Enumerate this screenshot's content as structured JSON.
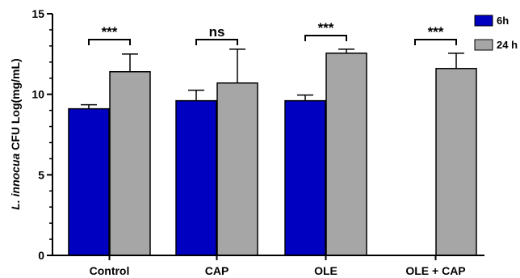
{
  "chart_data": {
    "type": "bar",
    "ylabel_italic": "L. innocua",
    "ylabel_rest": " CFU Log(mg/mL)",
    "ylim": [
      0,
      15
    ],
    "yticks": [
      0,
      5,
      10,
      15
    ],
    "categories": [
      "Control",
      "CAP",
      "OLE",
      "OLE + CAP"
    ],
    "series": [
      {
        "name": "6h",
        "color": "#0000c0",
        "values": [
          9.1,
          9.6,
          9.6,
          0
        ],
        "errors": [
          0.25,
          0.65,
          0.35,
          0
        ]
      },
      {
        "name": "24 h",
        "color": "#a6a6a6",
        "values": [
          11.4,
          10.7,
          12.55,
          11.6
        ],
        "errors": [
          1.1,
          2.1,
          0.25,
          0.95
        ]
      }
    ],
    "significance": [
      "***",
      "ns",
      "***",
      "***"
    ],
    "legend_position": "top-right",
    "grid": false
  }
}
